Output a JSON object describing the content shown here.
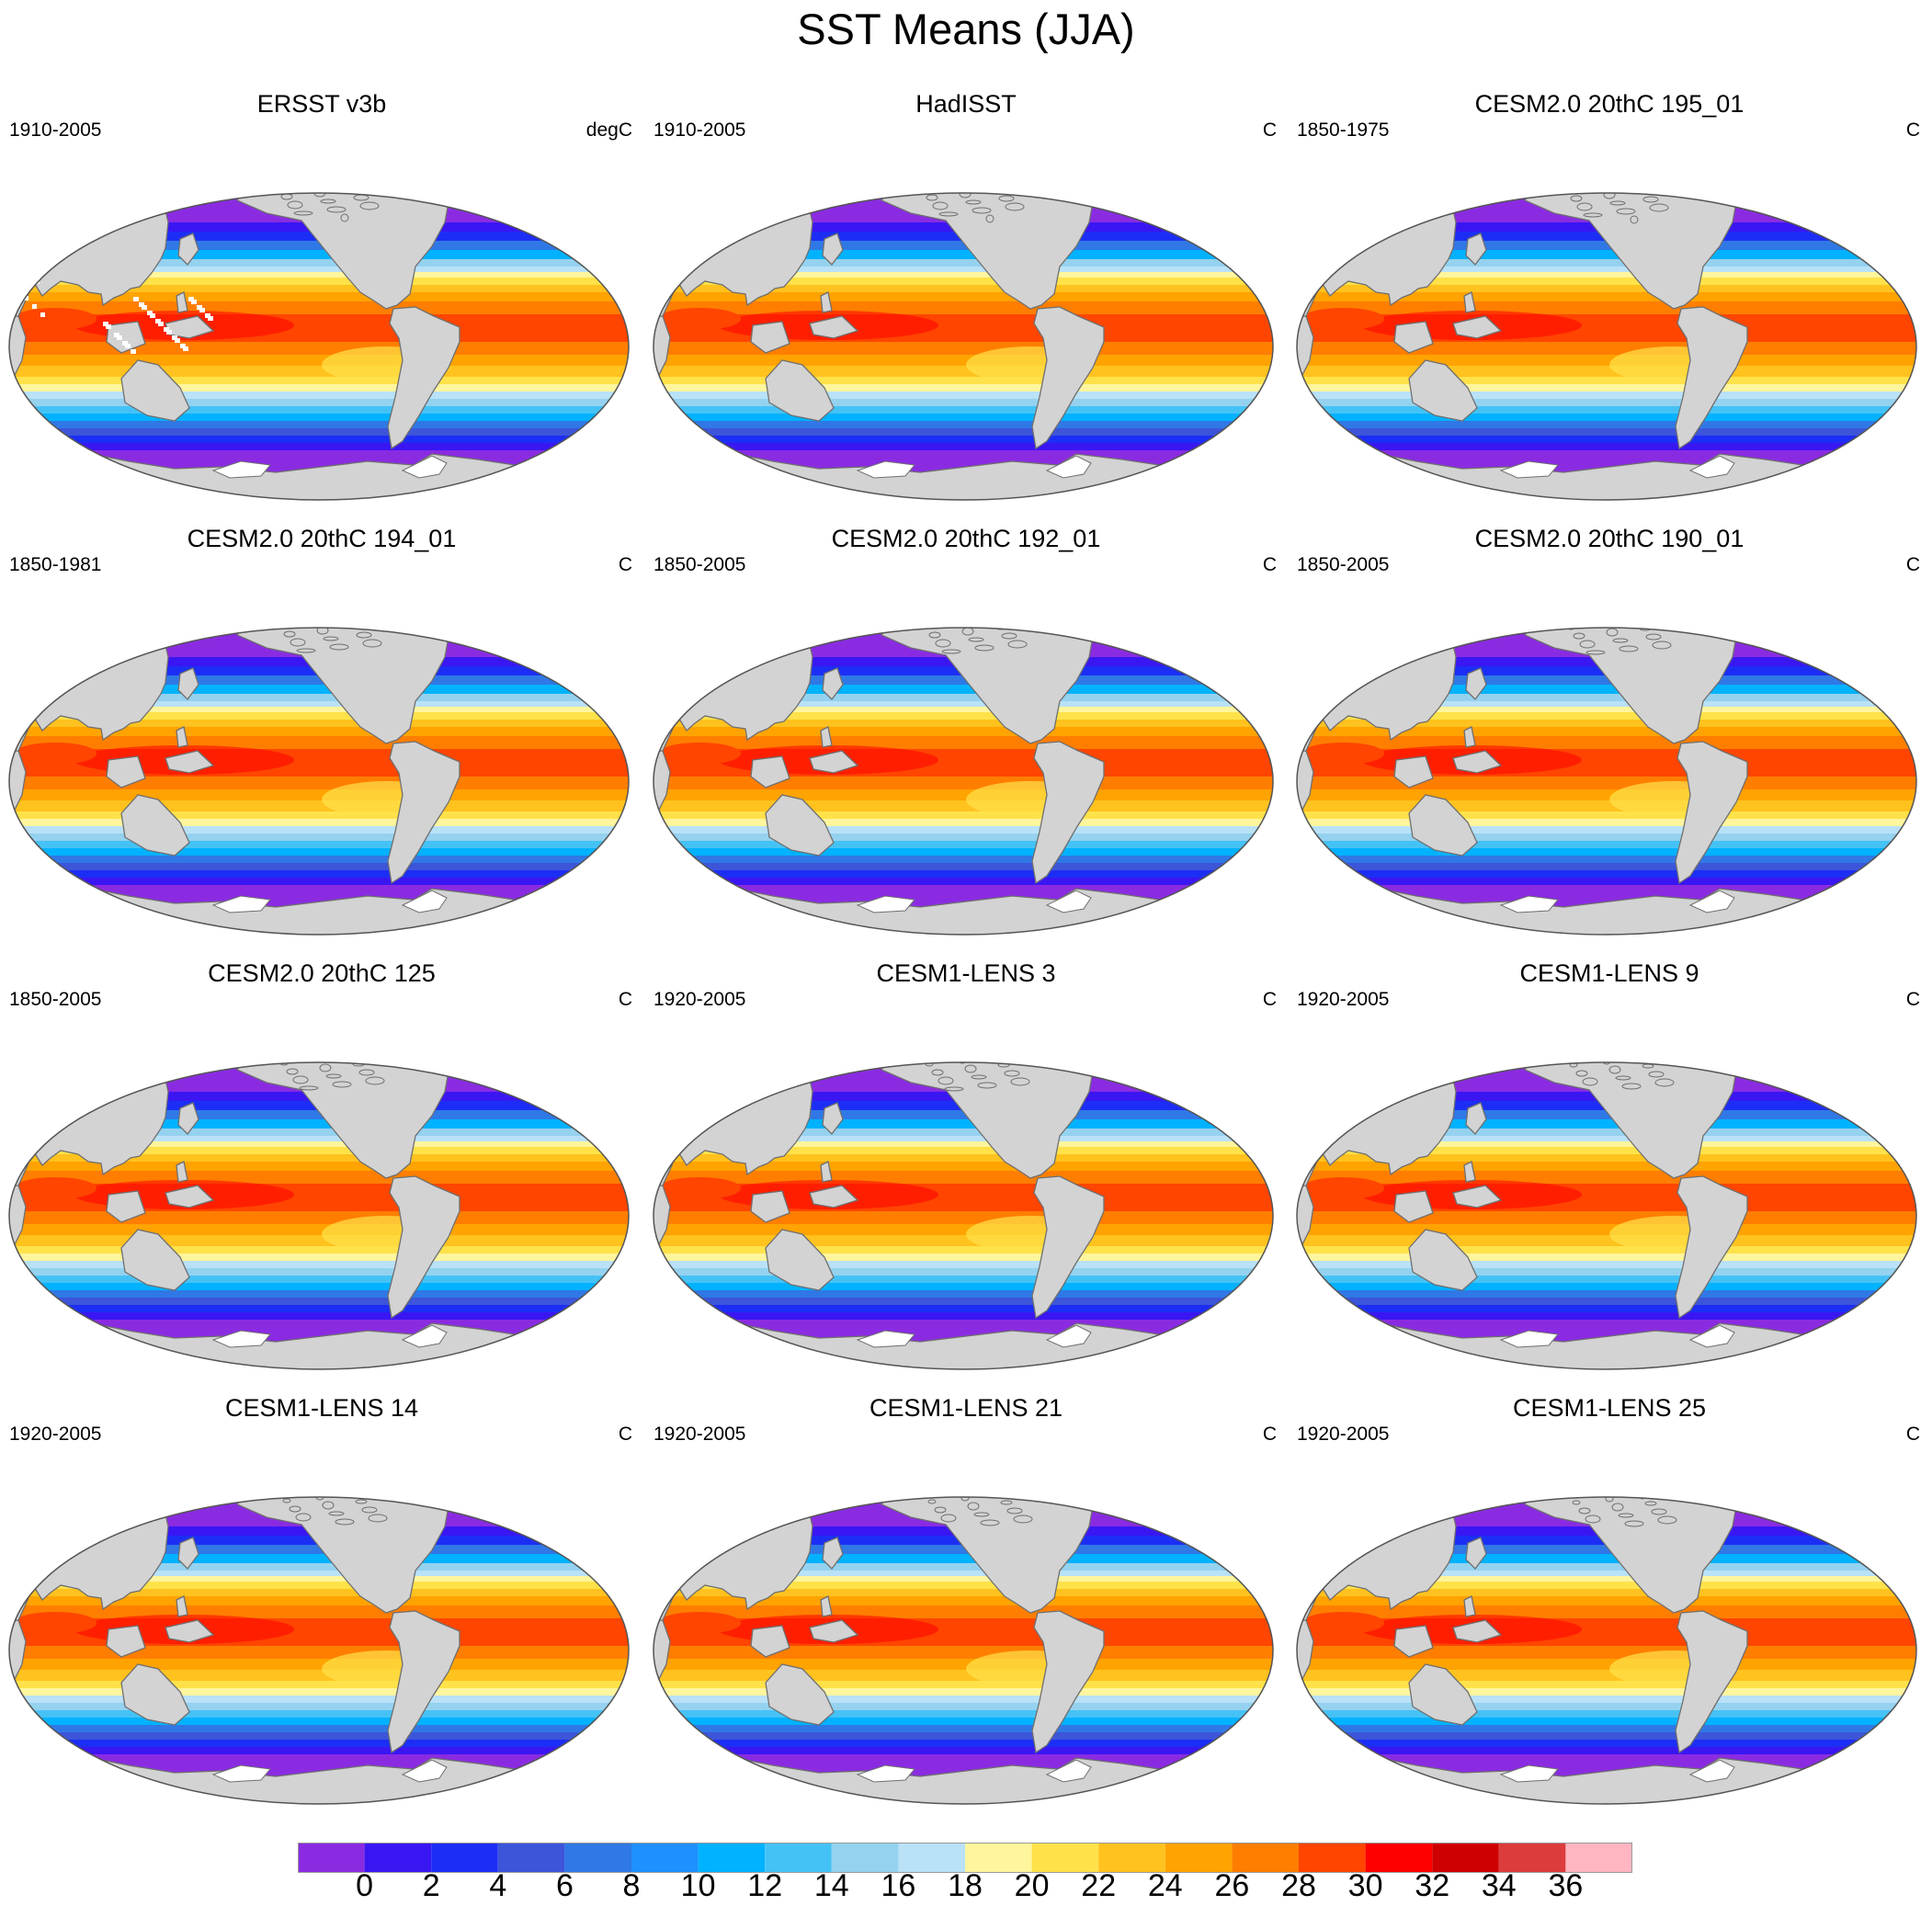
{
  "main_title": "SST Means (JJA)",
  "colors": {
    "land": "#d3d3d3",
    "coast": "#6f6f6f",
    "missing": "#ffffff"
  },
  "colorbar": {
    "colors": [
      "#8a2be2",
      "#3a16f3",
      "#1c2ef5",
      "#3c55d9",
      "#2f78e6",
      "#1e90ff",
      "#00b2ff",
      "#45c2f5",
      "#94d2ef",
      "#b9e1f7",
      "#fff59d",
      "#ffe24a",
      "#ffc21e",
      "#ffa300",
      "#ff7e00",
      "#ff4500",
      "#ff0000",
      "#cf0000",
      "#dc3c3c",
      "#ffb6c1"
    ],
    "labels": [
      "0",
      "2",
      "4",
      "6",
      "8",
      "10",
      "12",
      "14",
      "16",
      "18",
      "20",
      "22",
      "24",
      "26",
      "28",
      "30",
      "32",
      "34",
      "36"
    ]
  },
  "chart_data": [
    {
      "type": "heatmap",
      "title": "ERSST v3b",
      "period": "1910-2005",
      "units": "degC",
      "missing_land_cells": true
    },
    {
      "type": "heatmap",
      "title": "HadISST",
      "period": "1910-2005",
      "units": "C"
    },
    {
      "type": "heatmap",
      "title": "CESM2.0 20thC 195_01",
      "period": "1850-1975",
      "units": "C"
    },
    {
      "type": "heatmap",
      "title": "CESM2.0 20thC 194_01",
      "period": "1850-1981",
      "units": "C"
    },
    {
      "type": "heatmap",
      "title": "CESM2.0 20thC 192_01",
      "period": "1850-2005",
      "units": "C"
    },
    {
      "type": "heatmap",
      "title": "CESM2.0 20thC 190_01",
      "period": "1850-2005",
      "units": "C"
    },
    {
      "type": "heatmap",
      "title": "CESM2.0 20thC 125",
      "period": "1850-2005",
      "units": "C"
    },
    {
      "type": "heatmap",
      "title": "CESM1-LENS 3",
      "period": "1920-2005",
      "units": "C"
    },
    {
      "type": "heatmap",
      "title": "CESM1-LENS 9",
      "period": "1920-2005",
      "units": "C"
    },
    {
      "type": "heatmap",
      "title": "CESM1-LENS 14",
      "period": "1920-2005",
      "units": "C"
    },
    {
      "type": "heatmap",
      "title": "CESM1-LENS 21",
      "period": "1920-2005",
      "units": "C"
    },
    {
      "type": "heatmap",
      "title": "CESM1-LENS 25",
      "period": "1920-2005",
      "units": "C"
    }
  ]
}
